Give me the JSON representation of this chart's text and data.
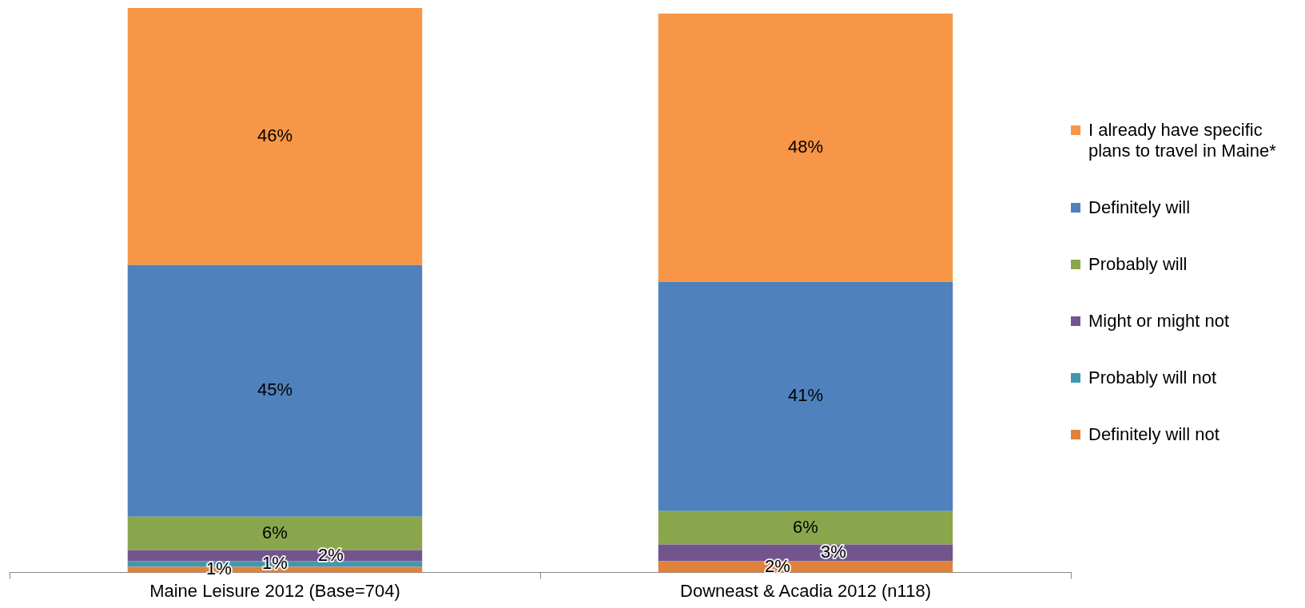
{
  "chart_data": {
    "type": "bar",
    "stacked": true,
    "legend": "right",
    "categories": [
      "Maine Leisure 2012 (Base=704)",
      "Downeast & Acadia 2012 (n118)"
    ],
    "series": [
      {
        "name": "Definitely will not",
        "color": "#e0823c",
        "values": [
          1,
          2
        ],
        "value_labels": [
          "1%",
          "2%"
        ]
      },
      {
        "name": "Probably will not",
        "color": "#4298ae",
        "values": [
          1,
          null
        ],
        "value_labels": [
          "1%",
          null
        ]
      },
      {
        "name": "Might or might not",
        "color": "#73558e",
        "values": [
          2,
          3
        ],
        "value_labels": [
          "2%",
          "3%"
        ]
      },
      {
        "name": "Probably will",
        "color": "#8aa64c",
        "values": [
          6,
          6
        ],
        "value_labels": [
          "6%",
          "6%"
        ]
      },
      {
        "name": "Definitely will",
        "color": "#4f81bd",
        "values": [
          45,
          41
        ],
        "value_labels": [
          "45%",
          "41%"
        ]
      },
      {
        "name": "I already have specific plans to travel in Maine*",
        "color": "#f79646",
        "values": [
          46,
          48
        ],
        "value_labels": [
          "46%",
          "48%"
        ]
      }
    ]
  }
}
